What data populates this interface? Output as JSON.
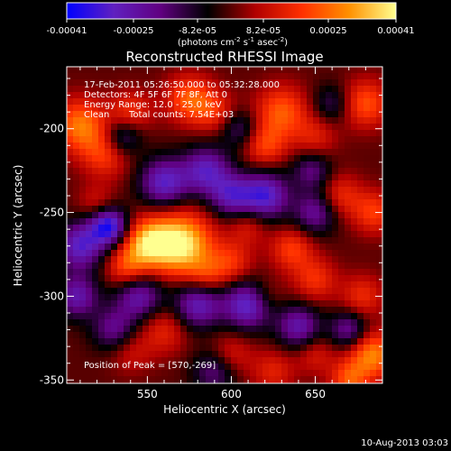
{
  "colorbar": {
    "tick_labels": [
      "-0.00041",
      "-0.00025",
      "-8.2e-05",
      "8.2e-05",
      "0.00025",
      "0.00041"
    ],
    "units_prefix": "(photons cm",
    "units_exp1": "-2",
    "units_mid": " s",
    "units_exp2": "-1",
    "units_mid2": " asec",
    "units_exp3": "-2",
    "units_suffix": ")",
    "colors": [
      "#0000ff",
      "#6020c0",
      "#600080",
      "#000000",
      "#b00000",
      "#ff3000",
      "#ff9000",
      "#ffff90"
    ]
  },
  "annotations": {
    "time_range": "17-Feb-2011 05:26:50.000 to 05:32:28.000",
    "detectors": "Detectors: 4F 5F 6F 7F 8F, Att 0",
    "energy": "Energy Range: 12.0 - 25.0 keV",
    "clean_label": "Clean",
    "total_counts": "Total counts: 7.54E+03",
    "peak": "Position of Peak = [570,-269]"
  },
  "footer": {
    "date_stamp": "10-Aug-2013 03:03"
  },
  "chart_data": {
    "type": "heatmap",
    "title": "Reconstructed RHESSI Image",
    "xlabel": "Heliocentric X (arcsec)",
    "ylabel": "Heliocentric Y (arcsec)",
    "xlim": [
      502,
      690
    ],
    "ylim": [
      -352,
      -163
    ],
    "xticks": [
      550,
      600,
      650
    ],
    "yticks": [
      -200,
      -250,
      -300,
      -350
    ],
    "colorbar_range": [
      -0.00041,
      0.00041
    ],
    "peak": {
      "x": 570,
      "y": -269
    },
    "blobs": [
      {
        "x": 570,
        "y": -269,
        "value": 0.00041,
        "spread": 13
      },
      {
        "x": 550,
        "y": -268,
        "value": 0.0003,
        "spread": 10
      },
      {
        "x": 538,
        "y": -283,
        "value": 0.0002,
        "spread": 9
      },
      {
        "x": 600,
        "y": -280,
        "value": 0.00016,
        "spread": 9
      },
      {
        "x": 585,
        "y": -288,
        "value": 0.00013,
        "spread": 8
      },
      {
        "x": 510,
        "y": -198,
        "value": 0.00026,
        "spread": 11
      },
      {
        "x": 525,
        "y": -215,
        "value": 0.00018,
        "spread": 10
      },
      {
        "x": 540,
        "y": -190,
        "value": 0.00016,
        "spread": 9
      },
      {
        "x": 575,
        "y": -182,
        "value": 0.00022,
        "spread": 10
      },
      {
        "x": 590,
        "y": -190,
        "value": 0.00014,
        "spread": 9
      },
      {
        "x": 630,
        "y": -190,
        "value": 0.00022,
        "spread": 11
      },
      {
        "x": 620,
        "y": -210,
        "value": 0.00018,
        "spread": 9
      },
      {
        "x": 650,
        "y": -205,
        "value": 0.00012,
        "spread": 9
      },
      {
        "x": 680,
        "y": -185,
        "value": 0.00021,
        "spread": 10
      },
      {
        "x": 665,
        "y": -240,
        "value": 0.00015,
        "spread": 9
      },
      {
        "x": 685,
        "y": -250,
        "value": 0.00018,
        "spread": 9
      },
      {
        "x": 610,
        "y": -258,
        "value": 0.00012,
        "spread": 8
      },
      {
        "x": 636,
        "y": -272,
        "value": 0.00018,
        "spread": 9
      },
      {
        "x": 650,
        "y": -290,
        "value": 0.00016,
        "spread": 9
      },
      {
        "x": 678,
        "y": -300,
        "value": 0.00015,
        "spread": 9
      },
      {
        "x": 620,
        "y": -300,
        "value": 0.0001,
        "spread": 8
      },
      {
        "x": 520,
        "y": -245,
        "value": 0.00011,
        "spread": 8
      },
      {
        "x": 560,
        "y": -320,
        "value": 0.00014,
        "spread": 10
      },
      {
        "x": 540,
        "y": -333,
        "value": 0.0001,
        "spread": 9
      },
      {
        "x": 600,
        "y": -335,
        "value": 0.00012,
        "spread": 9
      },
      {
        "x": 625,
        "y": -345,
        "value": 0.00013,
        "spread": 9
      },
      {
        "x": 650,
        "y": -335,
        "value": 0.00011,
        "spread": 8
      },
      {
        "x": 684,
        "y": -335,
        "value": 0.00028,
        "spread": 10
      },
      {
        "x": 670,
        "y": -350,
        "value": 0.0002,
        "spread": 8
      },
      {
        "x": 510,
        "y": -270,
        "value": -0.0003,
        "spread": 10
      },
      {
        "x": 508,
        "y": -300,
        "value": -0.00025,
        "spread": 9
      },
      {
        "x": 527,
        "y": -258,
        "value": -0.00038,
        "spread": 8
      },
      {
        "x": 560,
        "y": -232,
        "value": -0.0003,
        "spread": 10
      },
      {
        "x": 585,
        "y": -225,
        "value": -0.00028,
        "spread": 10
      },
      {
        "x": 600,
        "y": -240,
        "value": -0.00025,
        "spread": 9
      },
      {
        "x": 620,
        "y": -240,
        "value": -0.00032,
        "spread": 10
      },
      {
        "x": 650,
        "y": -250,
        "value": -0.00022,
        "spread": 9
      },
      {
        "x": 648,
        "y": -225,
        "value": -0.00018,
        "spread": 8
      },
      {
        "x": 580,
        "y": -305,
        "value": -0.00028,
        "spread": 10
      },
      {
        "x": 610,
        "y": -305,
        "value": -0.00033,
        "spread": 10
      },
      {
        "x": 545,
        "y": -300,
        "value": -0.00026,
        "spread": 10
      },
      {
        "x": 640,
        "y": -318,
        "value": -0.00025,
        "spread": 9
      },
      {
        "x": 670,
        "y": -320,
        "value": -0.00022,
        "spread": 8
      },
      {
        "x": 530,
        "y": -320,
        "value": -0.0002,
        "spread": 9
      },
      {
        "x": 590,
        "y": -345,
        "value": -0.00018,
        "spread": 9
      },
      {
        "x": 535,
        "y": -205,
        "value": -0.0002,
        "spread": 8
      },
      {
        "x": 605,
        "y": -200,
        "value": -0.00016,
        "spread": 8
      },
      {
        "x": 660,
        "y": -185,
        "value": -0.00014,
        "spread": 8
      }
    ]
  }
}
